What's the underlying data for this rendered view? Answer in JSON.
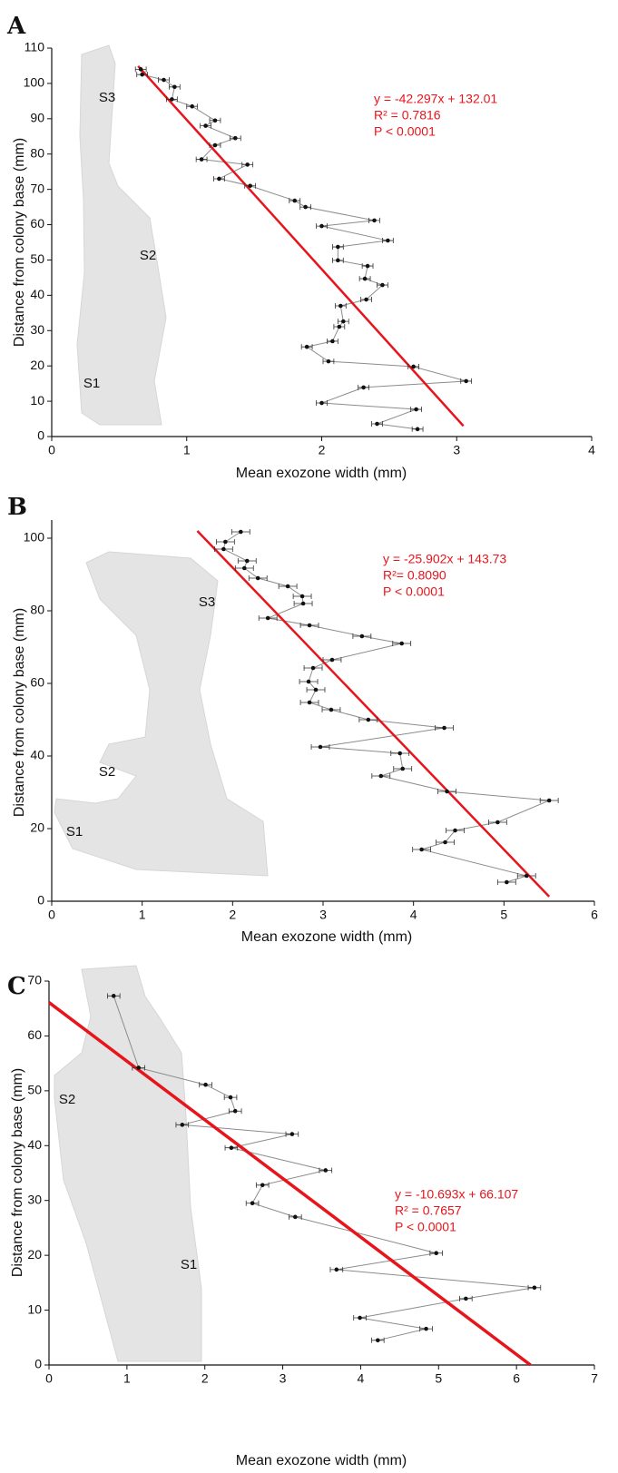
{
  "chart_data": [
    {
      "type": "line",
      "panel": "A",
      "x_label": "Mean exozone width (mm)",
      "y_label": "Distance from colony base (mm)",
      "xlim": [
        0,
        4
      ],
      "xticks": [
        0,
        1,
        2,
        3,
        4
      ],
      "ylim": [
        0,
        110
      ],
      "yticks": [
        0,
        10,
        20,
        30,
        40,
        50,
        60,
        70,
        80,
        90,
        100,
        110
      ],
      "x": [
        0.66,
        0.67,
        0.83,
        0.91,
        0.89,
        1.04,
        1.21,
        1.14,
        1.36,
        1.21,
        1.11,
        1.45,
        1.24,
        1.47,
        1.8,
        1.88,
        2.39,
        2.0,
        2.49,
        2.12,
        2.12,
        2.34,
        2.32,
        2.45,
        2.33,
        2.14,
        2.16,
        2.13,
        2.08,
        1.89,
        2.05,
        2.68,
        3.07,
        2.31,
        2.0,
        2.7,
        2.41,
        2.71
      ],
      "values": [
        104,
        102.5,
        101,
        99,
        95.5,
        93.5,
        89.5,
        88,
        84.5,
        82.5,
        78.5,
        77,
        73,
        71,
        66.8,
        65,
        61.2,
        59.6,
        55.5,
        53.7,
        49.9,
        48.3,
        44.7,
        42.9,
        38.8,
        37.0,
        32.6,
        31.1,
        27.0,
        25.4,
        21.3,
        19.8,
        15.7,
        13.9,
        9.5,
        7.7,
        3.6,
        2.1
      ],
      "x_error": 0.04,
      "color": "#8c8c8c",
      "fit": {
        "x": [
          0.64,
          3.05
        ],
        "values": [
          104.9,
          3.0
        ],
        "color": "#e8141b"
      },
      "annotations": [
        "y = -42.297x + 132.01",
        "R² = 0.7816",
        "P < 0.0001"
      ],
      "segment_labels": [
        "S3",
        "S2",
        "S1"
      ]
    },
    {
      "type": "line",
      "panel": "B",
      "x_label": "Mean exozone width (mm)",
      "y_label": "Distance from colony base (mm)",
      "xlim": [
        0,
        6
      ],
      "xticks": [
        0,
        1,
        2,
        3,
        4,
        5,
        6
      ],
      "ylim": [
        0,
        105
      ],
      "yticks": [
        0,
        20,
        40,
        60,
        80,
        100
      ],
      "x": [
        2.09,
        1.92,
        1.9,
        2.16,
        2.13,
        2.28,
        2.61,
        2.77,
        2.78,
        2.39,
        2.85,
        3.43,
        3.87,
        3.1,
        2.89,
        2.84,
        2.92,
        2.85,
        3.09,
        3.5,
        4.34,
        2.97,
        3.85,
        3.88,
        3.64,
        4.37,
        5.5,
        4.93,
        4.46,
        4.35,
        4.09,
        5.25,
        5.03
      ],
      "values": [
        101.75,
        99,
        97,
        93.75,
        91.75,
        89,
        86.75,
        84,
        82,
        78,
        76,
        73,
        71,
        66.5,
        64.25,
        60.5,
        58.25,
        54.75,
        52.75,
        50,
        47.75,
        42.5,
        40.75,
        36.5,
        34.5,
        30.25,
        27.75,
        21.75,
        19.5,
        16.25,
        14.25,
        7,
        5.25
      ],
      "x_error": 0.1,
      "color": "#8c8c8c",
      "fit": {
        "x": [
          1.61,
          5.5
        ],
        "values": [
          102.0,
          1.27
        ],
        "color": "#e8141b"
      },
      "annotations": [
        "y = -25.902x + 143.73",
        "R²= 0.8090",
        "P < 0.0001"
      ],
      "segment_labels": [
        "S3",
        "S2",
        "S1"
      ]
    },
    {
      "type": "line",
      "panel": "C",
      "x_label": "Mean exozone width (mm)",
      "y_label": "Distance from colony base (mm)",
      "xlim": [
        0,
        7
      ],
      "xticks": [
        0,
        1,
        2,
        3,
        4,
        5,
        6,
        7
      ],
      "ylim": [
        0,
        70
      ],
      "yticks": [
        0,
        10,
        20,
        30,
        40,
        50,
        60,
        70
      ],
      "x": [
        0.83,
        1.15,
        2.01,
        2.33,
        2.39,
        1.71,
        3.12,
        2.34,
        3.55,
        2.74,
        2.61,
        3.16,
        4.97,
        3.69,
        6.23,
        5.35,
        3.99,
        4.84,
        4.22
      ],
      "values": [
        67.3,
        54.2,
        51.1,
        48.8,
        46.3,
        43.8,
        42.1,
        39.6,
        35.5,
        32.8,
        29.5,
        27.0,
        20.4,
        17.4,
        14.1,
        12.1,
        8.6,
        6.6,
        4.5
      ],
      "x_error": 0.08,
      "color": "#8c8c8c",
      "fit": {
        "x": [
          0,
          6.18
        ],
        "values": [
          66.1,
          0
        ],
        "color": "#e8141b"
      },
      "annotations": [
        "y = -10.693x + 66.107",
        "R² = 0.7657",
        "P < 0.0001"
      ],
      "segment_labels": [
        "S2",
        "S1"
      ]
    }
  ]
}
